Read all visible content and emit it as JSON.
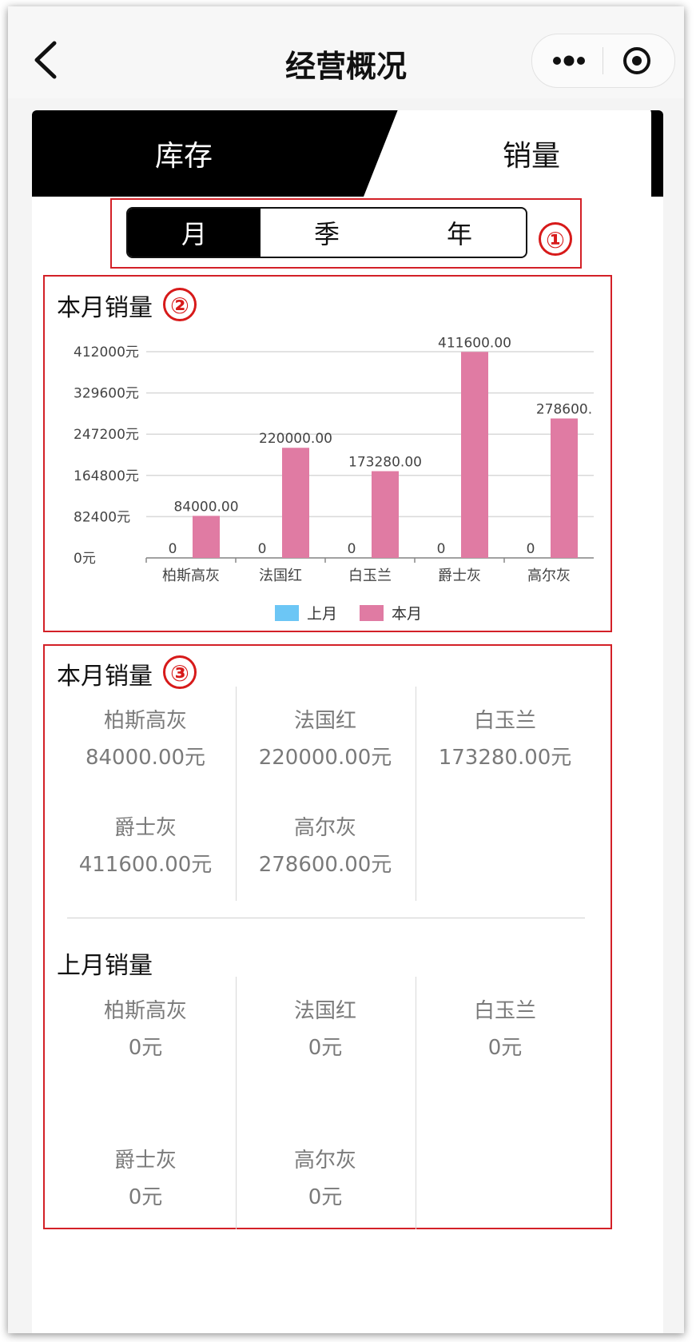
{
  "nav": {
    "title": "经营概况"
  },
  "tabs": [
    {
      "label": "库存",
      "active": false
    },
    {
      "label": "销量",
      "active": true
    }
  ],
  "period": {
    "options": [
      "月",
      "季",
      "年"
    ],
    "selected": "月"
  },
  "annotations": [
    "①",
    "②",
    "③"
  ],
  "chart_section": {
    "title": "本月销量"
  },
  "chart_data": {
    "type": "bar",
    "categories": [
      "柏斯高灰",
      "法国红",
      "白玉兰",
      "爵士灰",
      "高尔灰"
    ],
    "series": [
      {
        "name": "上月",
        "color": "#6cc6f5",
        "values": [
          0,
          0,
          0,
          0,
          0
        ],
        "labels": [
          "0",
          "0",
          "0",
          "0",
          "0"
        ]
      },
      {
        "name": "本月",
        "color": "#e07ba3",
        "values": [
          84000,
          220000,
          173280,
          411600,
          278600
        ],
        "labels": [
          "84000.00",
          "220000.00",
          "173280.00",
          "411600.00",
          "278600."
        ]
      }
    ],
    "yticks": [
      "0元",
      "82400元",
      "164800元",
      "247200元",
      "329600元",
      "412000元"
    ],
    "ylim": [
      0,
      412000
    ],
    "grid": true,
    "legend": "bottom"
  },
  "this_month": {
    "title": "本月销量",
    "items": [
      {
        "name": "柏斯高灰",
        "value": "84000.00元"
      },
      {
        "name": "法国红",
        "value": "220000.00元"
      },
      {
        "name": "白玉兰",
        "value": "173280.00元"
      },
      {
        "name": "爵士灰",
        "value": "411600.00元"
      },
      {
        "name": "高尔灰",
        "value": "278600.00元"
      }
    ]
  },
  "last_month": {
    "title": "上月销量",
    "items": [
      {
        "name": "柏斯高灰",
        "value": "0元"
      },
      {
        "name": "法国红",
        "value": "0元"
      },
      {
        "name": "白玉兰",
        "value": "0元"
      },
      {
        "name": "爵士灰",
        "value": "0元"
      },
      {
        "name": "高尔灰",
        "value": "0元"
      }
    ]
  }
}
